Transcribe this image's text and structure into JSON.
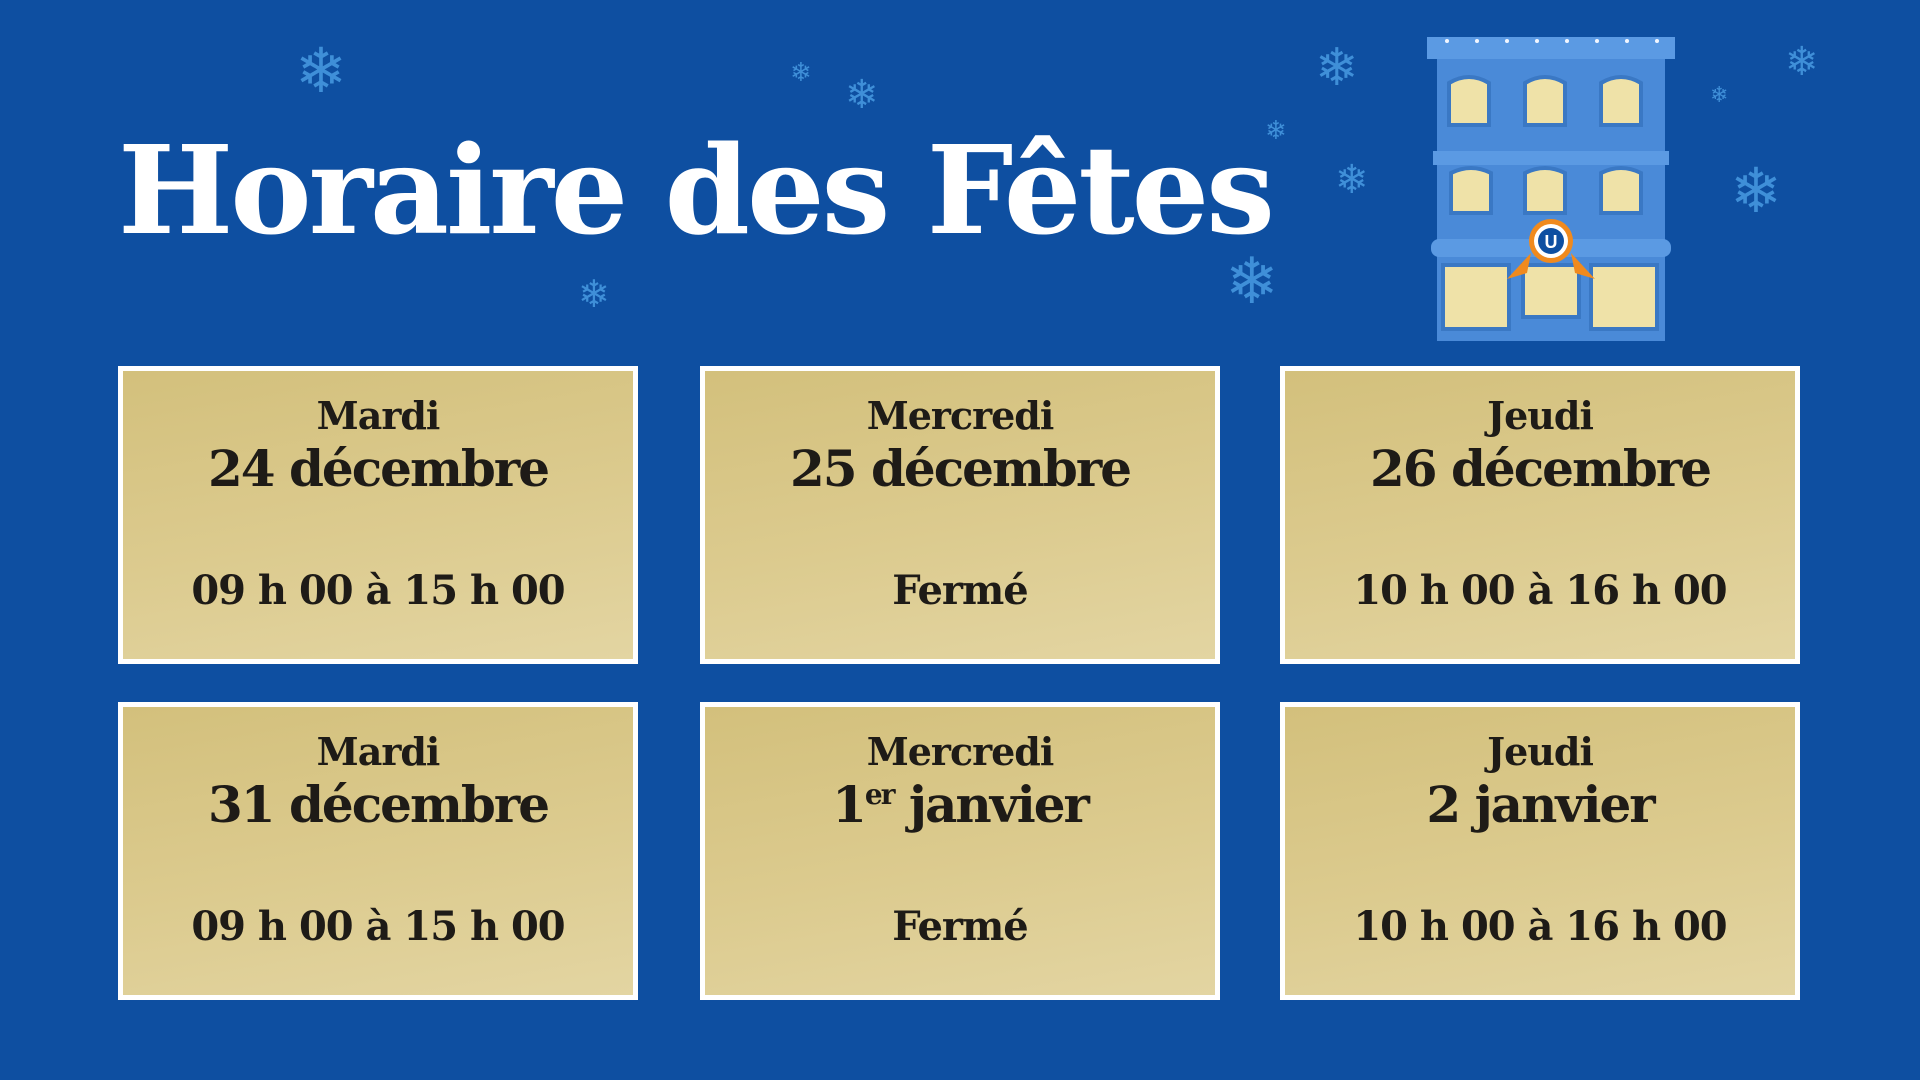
{
  "title": "Horaire des Fêtes",
  "colors": {
    "background": "#0e4fa1",
    "card": "#dccb8f",
    "card_border": "#ffffff",
    "text": "#1e1b17",
    "snowflake": "#3f8fd8"
  },
  "decorations": {
    "snowflake_icon": "❄",
    "building_sign": "U"
  },
  "schedule": [
    {
      "day": "Mardi",
      "date": "24 décembre",
      "date_sup": "",
      "date_rest": "",
      "hours": "09 h 00 à 15 h 00"
    },
    {
      "day": "Mercredi",
      "date": "25 décembre",
      "date_sup": "",
      "date_rest": "",
      "hours": "Fermé"
    },
    {
      "day": "Jeudi",
      "date": "26 décembre",
      "date_sup": "",
      "date_rest": "",
      "hours": "10 h 00 à 16 h 00"
    },
    {
      "day": "Mardi",
      "date": "31 décembre",
      "date_sup": "",
      "date_rest": "",
      "hours": "09 h 00 à 15 h 00"
    },
    {
      "day": "Mercredi",
      "date": "1",
      "date_sup": "er",
      "date_rest": " janvier",
      "hours": "Fermé"
    },
    {
      "day": "Jeudi",
      "date": "2 janvier",
      "date_sup": "",
      "date_rest": "",
      "hours": "10 h 00 à 16 h 00"
    }
  ]
}
